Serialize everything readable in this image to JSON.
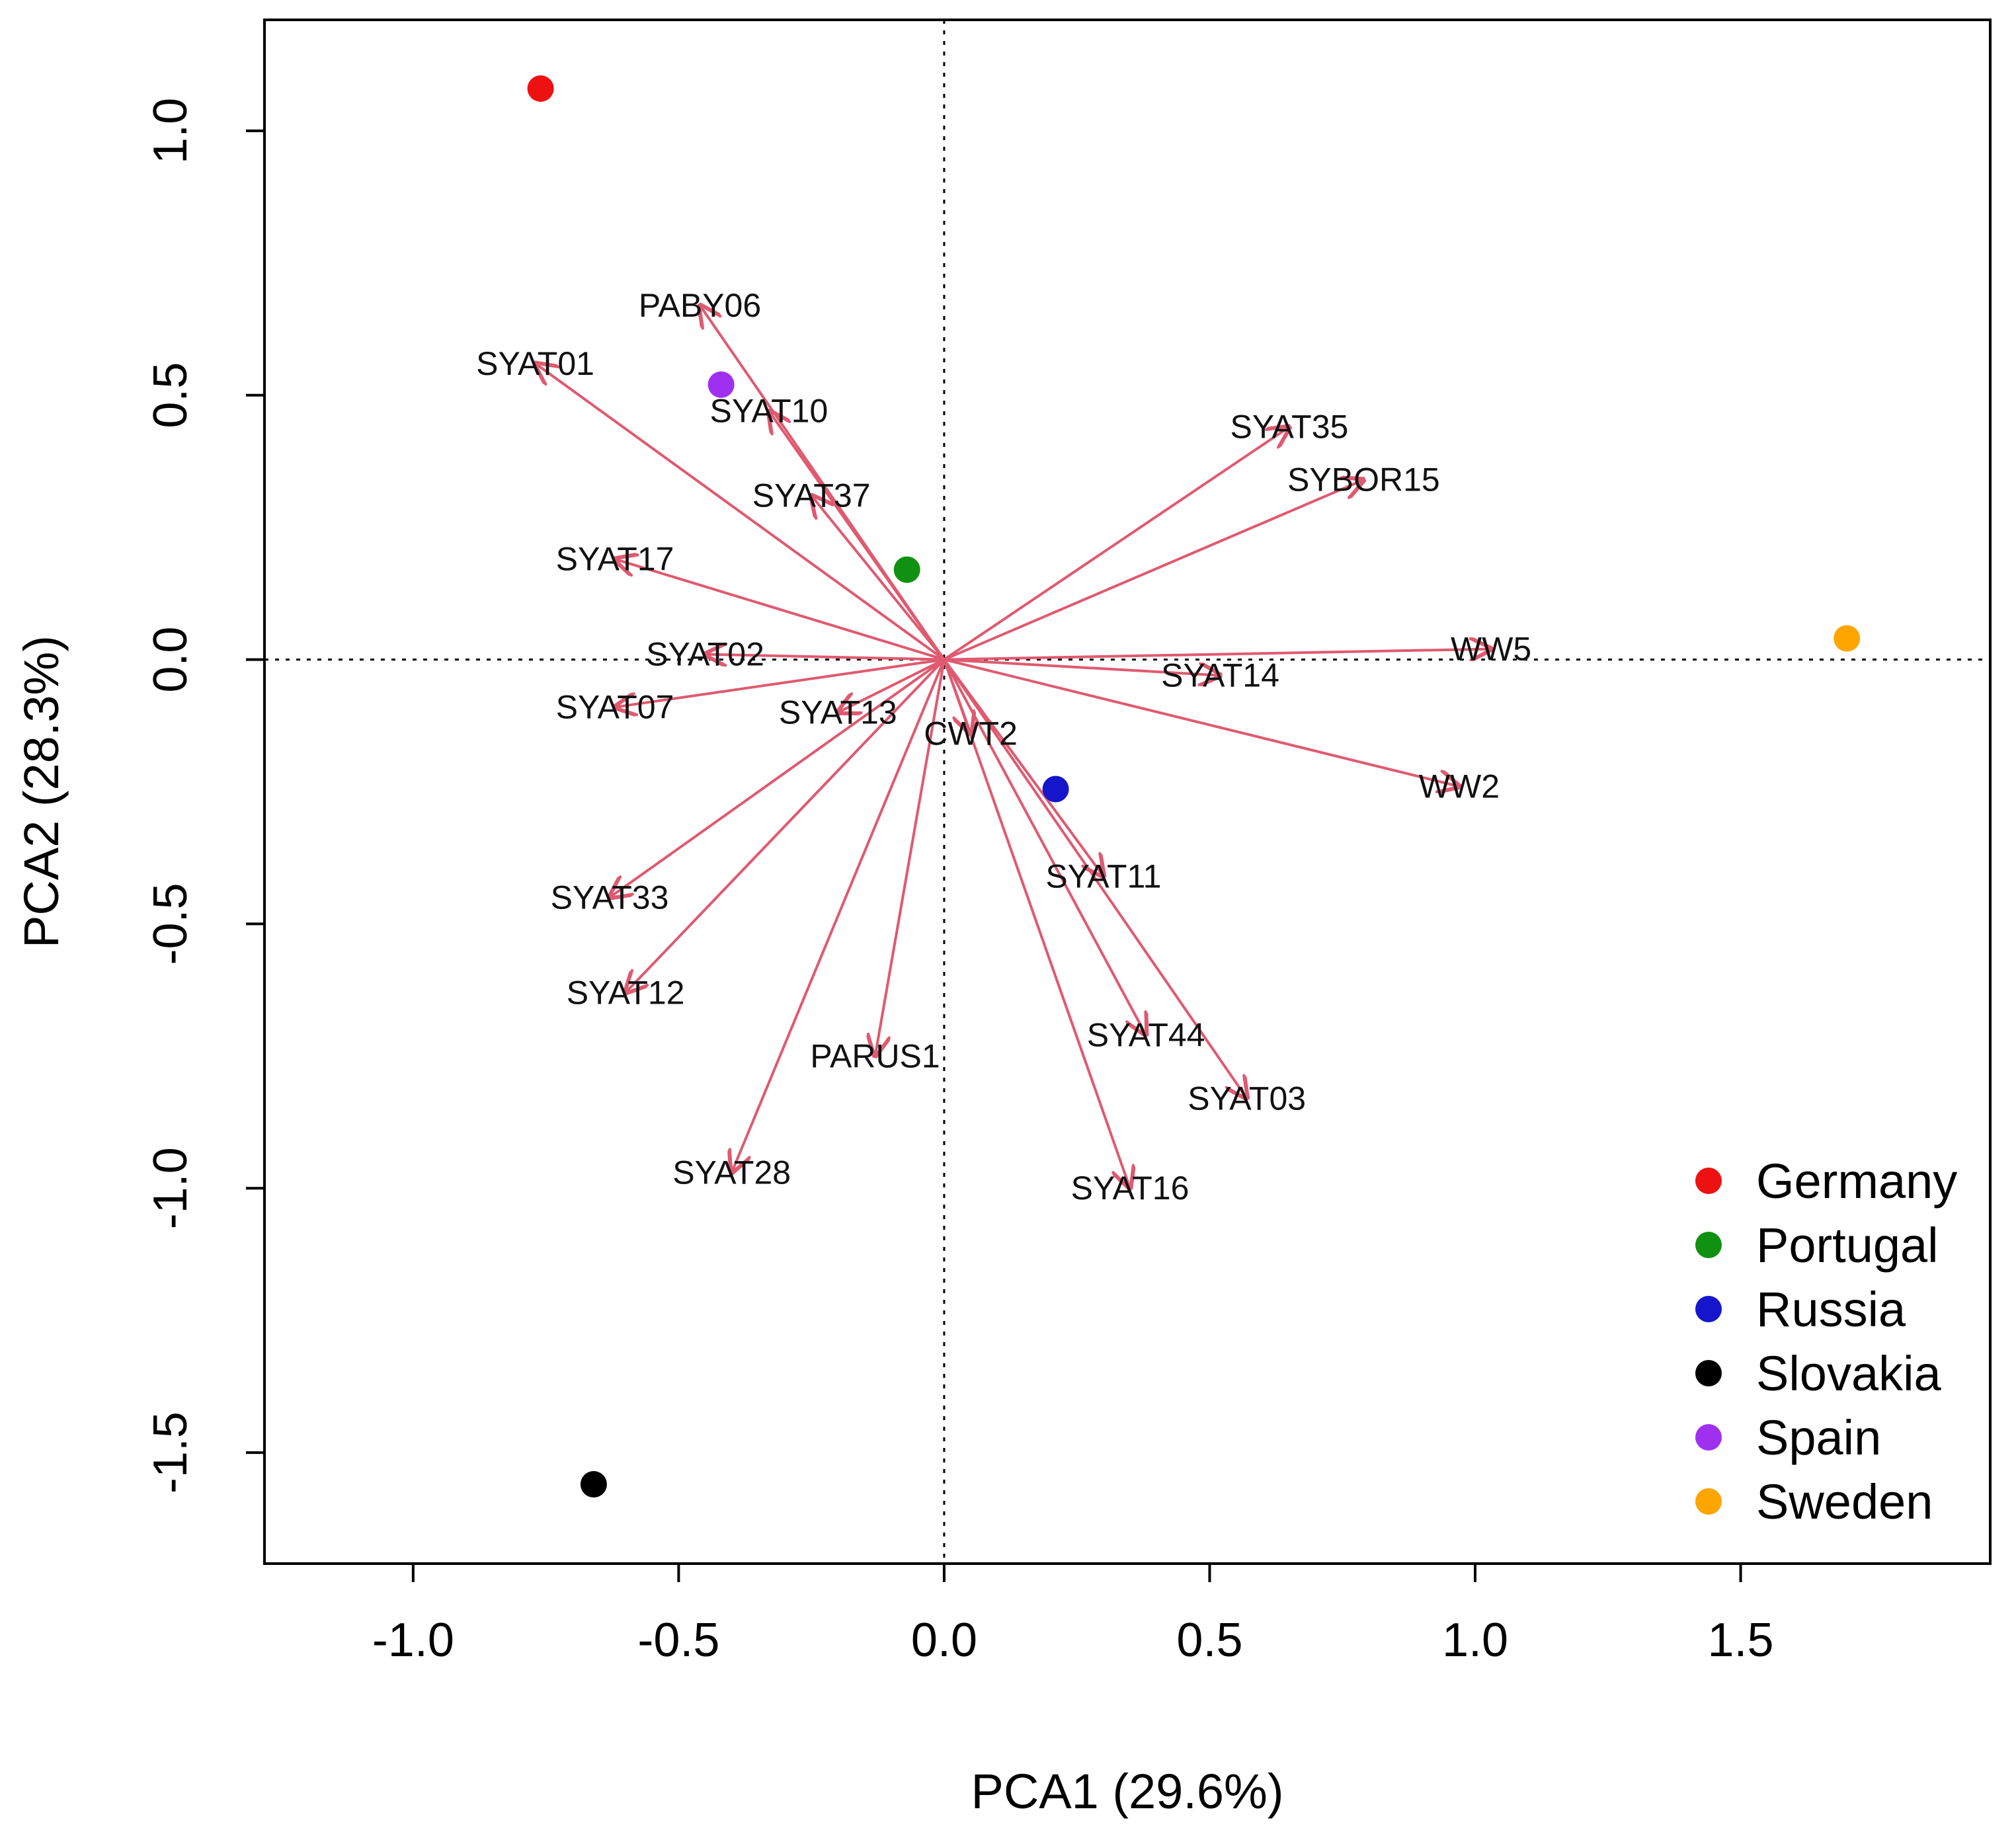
{
  "chart_data": {
    "type": "scatter",
    "subtype": "biplot",
    "title": "",
    "xlabel": "PCA1 (29.6%)",
    "ylabel": "PCA2 (28.3%)",
    "xlim": [
      -1.28,
      1.97
    ],
    "ylim": [
      -1.71,
      1.21
    ],
    "xticks": [
      -1.0,
      -0.5,
      0.0,
      0.5,
      1.0,
      1.5
    ],
    "yticks": [
      -1.5,
      -1.0,
      -0.5,
      0.0,
      0.5,
      1.0
    ],
    "xtick_labels": [
      "-1.0",
      "-0.5",
      "0.0",
      "0.5",
      "1.0",
      "1.5"
    ],
    "ytick_labels": [
      "-1.5",
      "-1.0",
      "-0.5",
      "0.0",
      "0.5",
      "1.0"
    ],
    "reference_lines": {
      "x": 0,
      "y": 0,
      "style": "dotted"
    },
    "vector_color": "#df5a70",
    "legend_position": "bottom-right",
    "points": [
      {
        "name": "Germany",
        "x": -0.76,
        "y": 1.08,
        "color": "#ee1111"
      },
      {
        "name": "Portugal",
        "x": -0.07,
        "y": 0.17,
        "color": "#119111"
      },
      {
        "name": "Russia",
        "x": 0.21,
        "y": -0.245,
        "color": "#1515cc"
      },
      {
        "name": "Slovakia",
        "x": -0.66,
        "y": -1.56,
        "color": "#000000"
      },
      {
        "name": "Spain",
        "x": -0.42,
        "y": 0.52,
        "color": "#a030f0"
      },
      {
        "name": "Sweden",
        "x": 1.7,
        "y": 0.04,
        "color": "#ffa500"
      }
    ],
    "vectors": [
      {
        "name": "PABY06",
        "x": -0.46,
        "y": 0.67
      },
      {
        "name": "SYAT01",
        "x": -0.77,
        "y": 0.56
      },
      {
        "name": "SYAT10",
        "x": -0.33,
        "y": 0.47
      },
      {
        "name": "SYAT37",
        "x": -0.25,
        "y": 0.31
      },
      {
        "name": "SYAT17",
        "x": -0.62,
        "y": 0.19
      },
      {
        "name": "SYAT02",
        "x": -0.45,
        "y": 0.01
      },
      {
        "name": "SYAT07",
        "x": -0.62,
        "y": -0.09
      },
      {
        "name": "SYAT13",
        "x": -0.2,
        "y": -0.1
      },
      {
        "name": "SYAT33",
        "x": -0.63,
        "y": -0.45
      },
      {
        "name": "SYAT12",
        "x": -0.6,
        "y": -0.63
      },
      {
        "name": "PARUS1",
        "x": -0.13,
        "y": -0.75
      },
      {
        "name": "SYAT28",
        "x": -0.4,
        "y": -0.97
      },
      {
        "name": "SYAT35",
        "x": 0.65,
        "y": 0.44
      },
      {
        "name": "SYBOR15",
        "x": 0.79,
        "y": 0.34
      },
      {
        "name": "WW5",
        "x": 1.03,
        "y": 0.02
      },
      {
        "name": "SYAT14",
        "x": 0.52,
        "y": -0.03
      },
      {
        "name": "WW2",
        "x": 0.97,
        "y": -0.24
      },
      {
        "name": "CWT2",
        "x": 0.05,
        "y": -0.14
      },
      {
        "name": "SYAT11",
        "x": 0.3,
        "y": -0.41
      },
      {
        "name": "SYAT44",
        "x": 0.38,
        "y": -0.71
      },
      {
        "name": "SYAT03",
        "x": 0.57,
        "y": -0.83
      },
      {
        "name": "SYAT16",
        "x": 0.35,
        "y": -1.0
      }
    ],
    "legend": [
      {
        "label": "Germany",
        "color": "#ee1111"
      },
      {
        "label": "Portugal",
        "color": "#119111"
      },
      {
        "label": "Russia",
        "color": "#1515cc"
      },
      {
        "label": "Slovakia",
        "color": "#000000"
      },
      {
        "label": "Spain",
        "color": "#a030f0"
      },
      {
        "label": "Sweden",
        "color": "#ffa500"
      }
    ]
  }
}
